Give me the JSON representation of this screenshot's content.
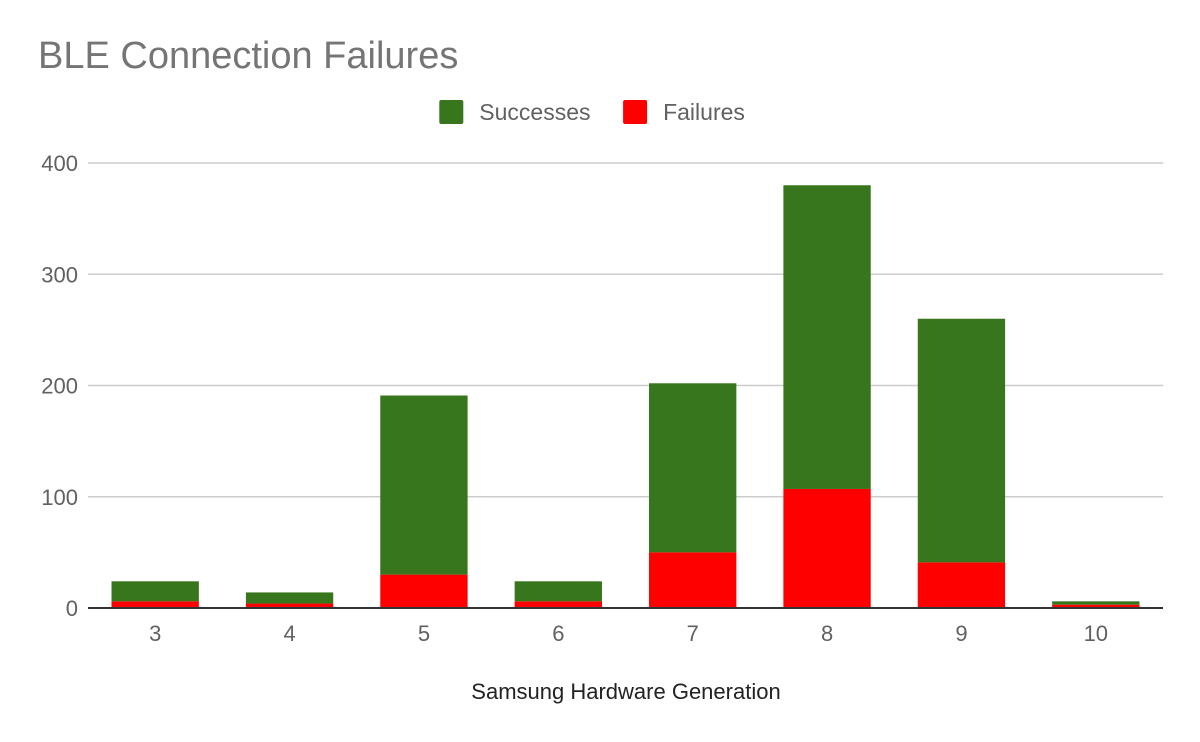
{
  "chart_data": {
    "type": "bar",
    "stacked": true,
    "title": "BLE Connection Failures",
    "xlabel": "Samsung Hardware Generation",
    "ylabel": "",
    "ylim": [
      0,
      400
    ],
    "yticks": [
      0,
      100,
      200,
      300,
      400
    ],
    "grid": true,
    "legend_position": "top",
    "categories": [
      "3",
      "4",
      "5",
      "6",
      "7",
      "8",
      "9",
      "10"
    ],
    "series": [
      {
        "name": "Failures",
        "color": "#ff0000",
        "values": [
          6,
          4,
          30,
          6,
          50,
          107,
          41,
          3
        ]
      },
      {
        "name": "Successes",
        "color": "#38761d",
        "values": [
          18,
          10,
          161,
          18,
          152,
          273,
          219,
          3
        ]
      }
    ],
    "legend_order": [
      "Successes",
      "Failures"
    ]
  }
}
